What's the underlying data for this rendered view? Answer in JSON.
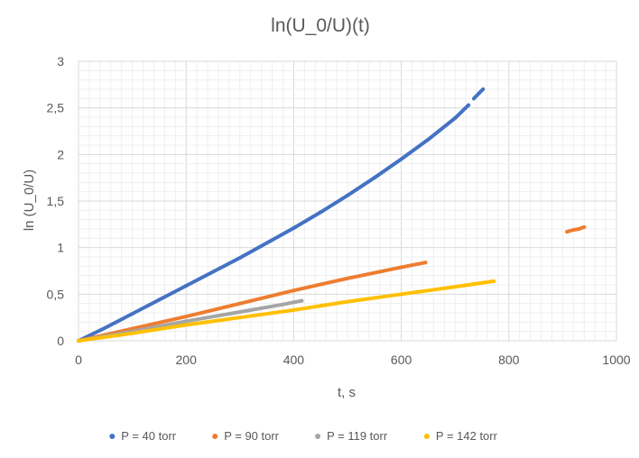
{
  "chart_data": {
    "type": "scatter",
    "title": "ln(U_0/U)(t)",
    "xlabel": "t, s",
    "ylabel": "ln (U_0/U)",
    "xlim": [
      0,
      1000
    ],
    "ylim": [
      0,
      3
    ],
    "x_ticks": [
      "0",
      "200",
      "400",
      "600",
      "800",
      "1000"
    ],
    "y_ticks": [
      "0",
      "0,5",
      "1",
      "1,5",
      "2",
      "2,5",
      "3"
    ],
    "grid": {
      "major": true,
      "minor": true
    },
    "legend_position": "bottom",
    "series": [
      {
        "name": "P = 40 torr",
        "color": "#4472C4",
        "segments": [
          {
            "x": [
              0,
              50,
              100,
              150,
              200,
              250,
              300,
              350,
              400,
              450,
              500,
              550,
              600,
              650,
              700,
              725
            ],
            "y": [
              0,
              0.14,
              0.29,
              0.44,
              0.59,
              0.74,
              0.89,
              1.05,
              1.21,
              1.38,
              1.56,
              1.75,
              1.95,
              2.16,
              2.39,
              2.53
            ]
          },
          {
            "x": [
              735,
              745,
              752
            ],
            "y": [
              2.6,
              2.66,
              2.7
            ]
          }
        ]
      },
      {
        "name": "P = 90 torr",
        "color": "#ED7D31",
        "segments": [
          {
            "x": [
              0,
              100,
              200,
              300,
              400,
              500,
              600,
              645
            ],
            "y": [
              0,
              0.13,
              0.26,
              0.4,
              0.54,
              0.67,
              0.79,
              0.84
            ]
          },
          {
            "x": [
              908,
              920,
              930,
              940
            ],
            "y": [
              1.17,
              1.19,
              1.2,
              1.22
            ]
          }
        ]
      },
      {
        "name": "P = 119 torr",
        "color": "#A5A5A5",
        "segments": [
          {
            "x": [
              0,
              100,
              200,
              300,
              380,
              415
            ],
            "y": [
              0,
              0.1,
              0.21,
              0.31,
              0.39,
              0.43
            ]
          }
        ]
      },
      {
        "name": "P = 142 torr",
        "color": "#FFC000",
        "segments": [
          {
            "x": [
              0,
              100,
              200,
              300,
              400,
              500,
              600,
              700,
              772
            ],
            "y": [
              0,
              0.08,
              0.17,
              0.25,
              0.33,
              0.42,
              0.5,
              0.58,
              0.64
            ]
          }
        ]
      }
    ]
  }
}
